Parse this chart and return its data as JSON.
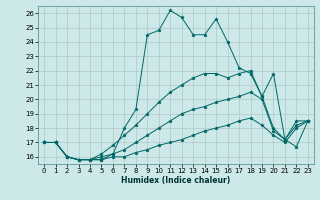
{
  "xlabel": "Humidex (Indice chaleur)",
  "ylabel": "",
  "bg_color": "#cce8e8",
  "grid_color": "#b0c8c8",
  "line_color": "#006666",
  "xlim": [
    -0.5,
    23.5
  ],
  "ylim": [
    15.5,
    26.5
  ],
  "xticks": [
    0,
    1,
    2,
    3,
    4,
    5,
    6,
    7,
    8,
    9,
    10,
    11,
    12,
    13,
    14,
    15,
    16,
    17,
    18,
    19,
    20,
    21,
    22,
    23
  ],
  "yticks": [
    16,
    17,
    18,
    19,
    20,
    21,
    22,
    23,
    24,
    25,
    26
  ],
  "series": [
    {
      "x": [
        0,
        1,
        2,
        3,
        4,
        5,
        6,
        7,
        8,
        9,
        10,
        11,
        12,
        13,
        14,
        15,
        16,
        17,
        18,
        19,
        20,
        21,
        22,
        23
      ],
      "y": [
        17.0,
        17.0,
        16.0,
        15.8,
        15.8,
        15.8,
        16.2,
        18.0,
        19.3,
        24.5,
        24.8,
        26.2,
        25.7,
        24.5,
        24.5,
        25.6,
        24.0,
        22.2,
        21.8,
        20.2,
        21.8,
        17.2,
        16.7,
        18.5
      ]
    },
    {
      "x": [
        0,
        1,
        2,
        3,
        4,
        5,
        6,
        7,
        8,
        9,
        10,
        11,
        12,
        13,
        14,
        15,
        16,
        17,
        18,
        19,
        20,
        21,
        22,
        23
      ],
      "y": [
        17.0,
        17.0,
        16.0,
        15.8,
        15.8,
        16.2,
        16.8,
        17.5,
        18.2,
        19.0,
        19.8,
        20.5,
        21.0,
        21.5,
        21.8,
        21.8,
        21.5,
        21.8,
        22.0,
        20.2,
        18.0,
        17.2,
        18.5,
        18.5
      ]
    },
    {
      "x": [
        0,
        1,
        2,
        3,
        4,
        5,
        6,
        7,
        8,
        9,
        10,
        11,
        12,
        13,
        14,
        15,
        16,
        17,
        18,
        19,
        20,
        21,
        22,
        23
      ],
      "y": [
        17.0,
        17.0,
        16.0,
        15.8,
        15.8,
        16.0,
        16.2,
        16.5,
        17.0,
        17.5,
        18.0,
        18.5,
        19.0,
        19.3,
        19.5,
        19.8,
        20.0,
        20.2,
        20.5,
        20.0,
        17.8,
        17.2,
        18.2,
        18.5
      ]
    },
    {
      "x": [
        0,
        1,
        2,
        3,
        4,
        5,
        6,
        7,
        8,
        9,
        10,
        11,
        12,
        13,
        14,
        15,
        16,
        17,
        18,
        19,
        20,
        21,
        22,
        23
      ],
      "y": [
        17.0,
        17.0,
        16.0,
        15.8,
        15.8,
        15.8,
        16.0,
        16.0,
        16.3,
        16.5,
        16.8,
        17.0,
        17.2,
        17.5,
        17.8,
        18.0,
        18.2,
        18.5,
        18.7,
        18.2,
        17.5,
        17.0,
        18.0,
        18.5
      ]
    }
  ]
}
